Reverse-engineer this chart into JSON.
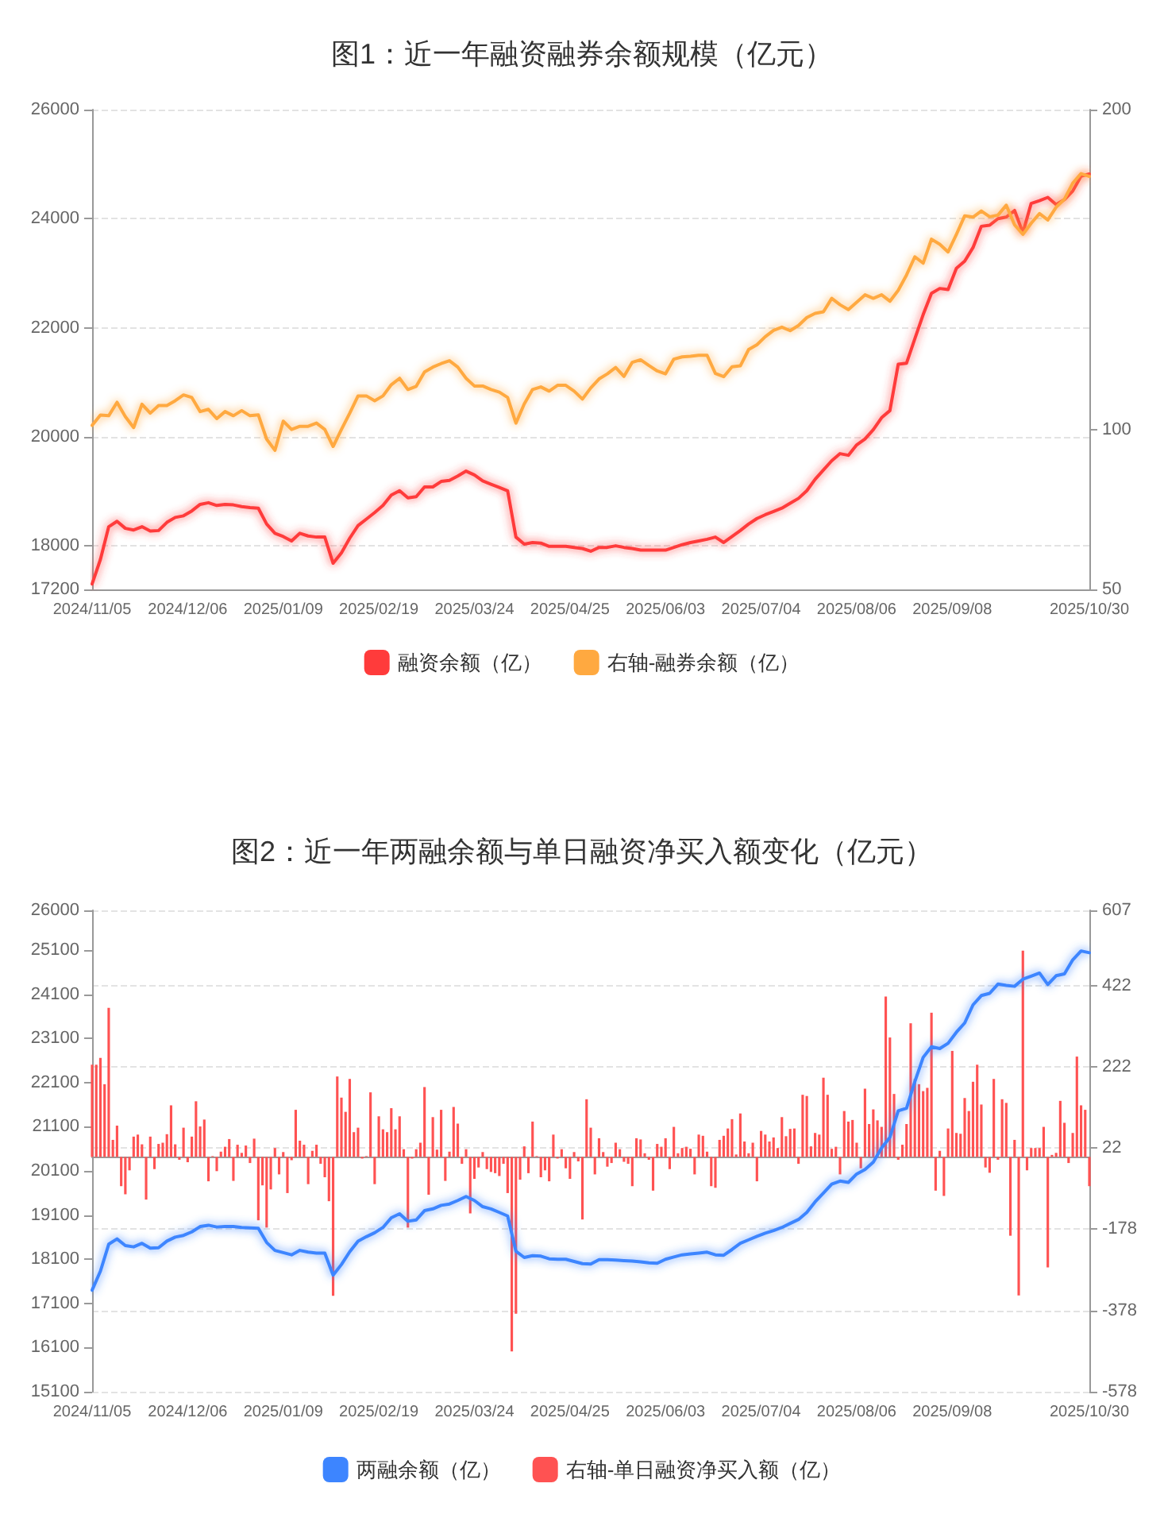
{
  "chart_data": [
    {
      "type": "line",
      "title": "图1：近一年融资融券余额规模（亿元）",
      "categories": [
        "2024/11/05",
        null,
        null,
        null,
        null,
        null,
        null,
        null,
        null,
        null,
        null,
        null,
        null,
        null,
        null,
        null,
        null,
        null,
        null,
        null,
        null,
        null,
        null,
        "2024/12/06",
        null,
        null,
        null,
        null,
        null,
        null,
        null,
        null,
        null,
        null,
        null,
        null,
        null,
        null,
        null,
        null,
        null,
        null,
        null,
        null,
        null,
        null,
        "2025/01/09",
        null,
        null,
        null,
        null,
        null,
        null,
        null,
        null,
        null,
        null,
        null,
        null,
        null,
        null,
        null,
        null,
        null,
        null,
        null,
        null,
        null,
        null,
        "2025/02/19",
        null,
        null,
        null,
        null,
        null,
        null,
        null,
        null,
        null,
        null,
        null,
        null,
        null,
        null,
        null,
        null,
        null,
        null,
        null,
        null,
        null,
        null,
        "2025/03/24",
        null,
        null,
        null,
        null,
        null,
        null,
        null,
        null,
        null,
        null,
        null,
        null,
        null,
        null,
        null,
        null,
        null,
        null,
        null,
        null,
        null,
        null,
        "2025/04/25",
        null,
        null,
        null,
        null,
        null,
        null,
        null,
        null,
        null,
        null,
        null,
        null,
        null,
        null,
        null,
        null,
        null,
        null,
        null,
        null,
        null,
        null,
        "2025/06/03",
        null,
        null,
        null,
        null,
        null,
        null,
        null,
        null,
        null,
        null,
        null,
        null,
        null,
        null,
        null,
        null,
        null,
        null,
        null,
        null,
        null,
        null,
        "2025/07/04",
        null,
        null,
        null,
        null,
        null,
        null,
        null,
        null,
        null,
        null,
        null,
        null,
        null,
        null,
        null,
        null,
        null,
        null,
        null,
        null,
        null,
        null,
        "2025/08/06",
        null,
        null,
        null,
        null,
        null,
        null,
        null,
        null,
        null,
        null,
        null,
        null,
        null,
        null,
        null,
        null,
        null,
        null,
        null,
        null,
        null,
        null,
        "2025/09/08",
        null,
        null,
        null,
        null,
        null,
        null,
        null,
        null,
        null,
        null,
        null,
        null,
        null,
        null,
        null,
        null,
        null,
        null,
        null,
        null,
        null,
        null,
        null,
        null,
        null,
        null,
        null,
        null,
        null,
        null,
        null,
        null,
        "2025/10/30"
      ],
      "ylim": [
        17200,
        26000
      ],
      "yticks": [
        17200,
        18000,
        20000,
        22000,
        24000,
        26000
      ],
      "y2lim": [
        50,
        200
      ],
      "y2ticks": [
        50,
        100,
        200
      ],
      "grid": "y",
      "legend": "bottom",
      "marker": "none",
      "series": [
        {
          "name": "融资余额（亿）",
          "color": "#ff3b3b",
          "values": [
            17300,
            null,
            17750,
            null,
            18350,
            null,
            18450,
            null,
            18320,
            null,
            18290,
            null,
            18350,
            null,
            18270,
            null,
            18280,
            null,
            18430,
            null,
            18520,
            null,
            18550,
            null,
            18640,
            null,
            18760,
            null,
            18790,
            null,
            18740,
            null,
            18760,
            null,
            18750,
            null,
            18720,
            null,
            18700,
            null,
            18690,
            null,
            18400,
            null,
            18230,
            null,
            18170,
            null,
            18090,
            null,
            18230,
            null,
            18180,
            null,
            18160,
            null,
            18160,
            null,
            17680,
            null,
            17870,
            null,
            18140,
            null,
            18370,
            null,
            18490,
            null,
            18610,
            null,
            18740,
            null,
            18930,
            null,
            19010,
            null,
            18880,
            null,
            18900,
            null,
            19080,
            null,
            19080,
            null,
            19180,
            null,
            19200,
            null,
            19280,
            null,
            19370,
            null,
            19300,
            null,
            19190,
            null,
            19130,
            null,
            19070,
            null,
            19010,
            null,
            18160,
            null,
            18030,
            null,
            18060,
            null,
            18050,
            null,
            17990,
            null,
            17990,
            null,
            17990,
            null,
            17970,
            null,
            17950,
            null,
            17900,
            null,
            17970,
            null,
            17970,
            null,
            18000,
            null,
            17970,
            null,
            17950,
            null,
            17920,
            null,
            17920,
            null,
            17920,
            null,
            17920,
            null,
            17970,
            null,
            18020,
            null,
            18060,
            null,
            18090,
            null,
            18120,
            null,
            18160,
            null,
            18060,
            null,
            18170,
            null,
            18280,
            null,
            18400,
            null,
            18500,
            null,
            18570,
            null,
            18630,
            null,
            18690,
            null,
            18780,
            null,
            18870,
            null,
            19010,
            null,
            19220,
            null,
            19390,
            null,
            19560,
            null,
            19690,
            null,
            19660,
            null,
            19850,
            null,
            19960,
            null,
            20130,
            null,
            20350,
            null,
            20480,
            null,
            21330,
            null,
            21350,
            null,
            21800,
            null,
            22240,
            null,
            22630,
            null,
            22720,
            null,
            22700,
            null,
            23090,
            null,
            23220,
            null,
            23470,
            null,
            23860,
            null,
            23880,
            null,
            24000,
            null,
            24030,
            null,
            24150,
            null,
            23740,
            null,
            24280,
            null,
            24330,
            null,
            24390,
            null,
            24260,
            null,
            24350,
            null,
            24510,
            null,
            24780,
            null,
            24820
          ]
        },
        {
          "name": "右轴-融券余额（亿）",
          "color": "#ffa940",
          "axis": "y2",
          "values": [
            101.3,
            null,
            104.5,
            null,
            104.3,
            null,
            108.5,
            null,
            104,
            null,
            100.6,
            null,
            107.9,
            null,
            105.1,
            null,
            107.5,
            null,
            107.5,
            null,
            109,
            null,
            110.8,
            null,
            110,
            null,
            105.6,
            null,
            106.3,
            null,
            103.4,
            null,
            105.6,
            null,
            104.3,
            null,
            105.9,
            null,
            104.3,
            null,
            104.6,
            null,
            97,
            null,
            93.5,
            null,
            102.6,
            null,
            100,
            null,
            101,
            null,
            101,
            null,
            102,
            null,
            100,
            null,
            94.7,
            null,
            100,
            null,
            105.1,
            null,
            110.5,
            null,
            110.5,
            null,
            109,
            null,
            110.5,
            null,
            114,
            null,
            116,
            null,
            112.5,
            null,
            113.5,
            null,
            118,
            null,
            119.5,
            null,
            120.6,
            null,
            121.5,
            null,
            119.5,
            null,
            116,
            null,
            113.6,
            null,
            113.6,
            null,
            112.5,
            null,
            111.7,
            null,
            110,
            null,
            102,
            null,
            108,
            null,
            112.5,
            null,
            113.3,
            null,
            112,
            null,
            113.8,
            null,
            113.8,
            null,
            112,
            null,
            109.5,
            null,
            113,
            null,
            115.8,
            null,
            117.4,
            null,
            119.4,
            null,
            116.6,
            null,
            121,
            null,
            121.8,
            null,
            120,
            null,
            118.3,
            null,
            117.4,
            null,
            122,
            null,
            122.7,
            null,
            122.9,
            null,
            123.2,
            null,
            123.2,
            null,
            117.5,
            null,
            116.5,
            null,
            119.6,
            null,
            119.9,
            null,
            125,
            null,
            126.5,
            null,
            129,
            null,
            131,
            null,
            132,
            null,
            130.9,
            null,
            132.5,
            null,
            135,
            null,
            136.3,
            null,
            136.8,
            null,
            141,
            null,
            139,
            null,
            137.5,
            null,
            139.8,
            null,
            142.1,
            null,
            141,
            null,
            142.1,
            null,
            140.1,
            null,
            143.5,
            null,
            148.3,
            null,
            154,
            null,
            152,
            null,
            159.5,
            null,
            157.9,
            null,
            155.5,
            null,
            161,
            null,
            166.8,
            null,
            166.4,
            null,
            168.3,
            null,
            166.5,
            null,
            167,
            null,
            170.1,
            null,
            164,
            null,
            161,
            null,
            164.5,
            null,
            167.5,
            null,
            165.5,
            null,
            169.5,
            null,
            172,
            null,
            177,
            null,
            180,
            null,
            179.1
          ]
        }
      ]
    },
    {
      "type": "line",
      "title": "图2：近一年两融余额与单日融资净买入额变化（亿元）",
      "categories": [
        "2024/11/05",
        null,
        null,
        null,
        null,
        null,
        null,
        null,
        null,
        null,
        null,
        null,
        null,
        null,
        null,
        null,
        null,
        null,
        null,
        null,
        null,
        null,
        null,
        "2024/12/06",
        null,
        null,
        null,
        null,
        null,
        null,
        null,
        null,
        null,
        null,
        null,
        null,
        null,
        null,
        null,
        null,
        null,
        null,
        null,
        null,
        null,
        null,
        "2025/01/09",
        null,
        null,
        null,
        null,
        null,
        null,
        null,
        null,
        null,
        null,
        null,
        null,
        null,
        null,
        null,
        null,
        null,
        null,
        null,
        null,
        null,
        null,
        "2025/02/19",
        null,
        null,
        null,
        null,
        null,
        null,
        null,
        null,
        null,
        null,
        null,
        null,
        null,
        null,
        null,
        null,
        null,
        null,
        null,
        null,
        null,
        null,
        "2025/03/24",
        null,
        null,
        null,
        null,
        null,
        null,
        null,
        null,
        null,
        null,
        null,
        null,
        null,
        null,
        null,
        null,
        null,
        null,
        null,
        null,
        null,
        null,
        "2025/04/25",
        null,
        null,
        null,
        null,
        null,
        null,
        null,
        null,
        null,
        null,
        null,
        null,
        null,
        null,
        null,
        null,
        null,
        null,
        null,
        null,
        null,
        null,
        "2025/06/03",
        null,
        null,
        null,
        null,
        null,
        null,
        null,
        null,
        null,
        null,
        null,
        null,
        null,
        null,
        null,
        null,
        null,
        null,
        null,
        null,
        null,
        null,
        "2025/07/04",
        null,
        null,
        null,
        null,
        null,
        null,
        null,
        null,
        null,
        null,
        null,
        null,
        null,
        null,
        null,
        null,
        null,
        null,
        null,
        null,
        null,
        null,
        "2025/08/06",
        null,
        null,
        null,
        null,
        null,
        null,
        null,
        null,
        null,
        null,
        null,
        null,
        null,
        null,
        null,
        null,
        null,
        null,
        null,
        null,
        null,
        null,
        "2025/09/08",
        null,
        null,
        null,
        null,
        null,
        null,
        null,
        null,
        null,
        null,
        null,
        null,
        null,
        null,
        null,
        null,
        null,
        null,
        null,
        null,
        null,
        null,
        null,
        null,
        null,
        null,
        null,
        null,
        null,
        null,
        null,
        null,
        "2025/10/30"
      ],
      "ylim": [
        15100,
        26000
      ],
      "yticks": [
        15100,
        16100,
        17100,
        18100,
        19100,
        20100,
        21100,
        22100,
        23100,
        24100,
        25100,
        26000
      ],
      "y2lim": [
        -578,
        607
      ],
      "y2ticks": [
        -578,
        -378,
        -178,
        22,
        222,
        422,
        607
      ],
      "grid": "y",
      "legend": "bottom",
      "marker": "none",
      "series": [
        {
          "name": "两融余额（亿）",
          "color": "#3d85ff",
          "values": [
            17400,
            null,
            17830,
            null,
            18440,
            null,
            18560,
            null,
            18410,
            null,
            18380,
            null,
            18460,
            null,
            18350,
            null,
            18360,
            null,
            18510,
            null,
            18600,
            null,
            18640,
            null,
            18720,
            null,
            18840,
            null,
            18870,
            null,
            18830,
            null,
            18840,
            null,
            18840,
            null,
            18820,
            null,
            18810,
            null,
            18800,
            null,
            18480,
            null,
            18300,
            null,
            18250,
            null,
            18200,
            null,
            18300,
            null,
            18260,
            null,
            18240,
            null,
            18240,
            null,
            17740,
            null,
            17980,
            null,
            18270,
            null,
            18510,
            null,
            18610,
            null,
            18700,
            null,
            18820,
            null,
            19040,
            null,
            19130,
            null,
            18960,
            null,
            18990,
            null,
            19200,
            null,
            19240,
            null,
            19320,
            null,
            19350,
            null,
            19430,
            null,
            19520,
            null,
            19430,
            null,
            19290,
            null,
            19240,
            null,
            19160,
            null,
            19080,
            null,
            18280,
            null,
            18140,
            null,
            18180,
            null,
            18170,
            null,
            18110,
            null,
            18100,
            null,
            18100,
            null,
            18050,
            null,
            18000,
            null,
            17990,
            null,
            18090,
            null,
            18090,
            null,
            18080,
            null,
            18070,
            null,
            18060,
            null,
            18040,
            null,
            18020,
            null,
            18010,
            null,
            18100,
            null,
            18150,
            null,
            18200,
            null,
            18220,
            null,
            18240,
            null,
            18260,
            null,
            18200,
            null,
            18190,
            null,
            18320,
            null,
            18460,
            null,
            18540,
            null,
            18620,
            null,
            18690,
            null,
            18750,
            null,
            18820,
            null,
            18910,
            null,
            19000,
            null,
            19160,
            null,
            19400,
            null,
            19600,
            null,
            19800,
            null,
            19870,
            null,
            19840,
            null,
            20030,
            null,
            20130,
            null,
            20300,
            null,
            20620,
            null,
            20860,
            null,
            21460,
            null,
            21520,
            null,
            22120,
            null,
            22670,
            null,
            22910,
            null,
            22870,
            null,
            22990,
            null,
            23240,
            null,
            23450,
            null,
            23860,
            null,
            24070,
            null,
            24120,
            null,
            24330,
            null,
            24300,
            null,
            24280,
            null,
            24440,
            null,
            24510,
            null,
            24580,
            null,
            24320,
            null,
            24520,
            null,
            24560,
            null,
            24880,
            null,
            25080,
            null,
            25040
          ]
        },
        {
          "name": "右轴-单日融资净买入额（亿）",
          "color": "#ff5252",
          "type": "bar",
          "axis": "y2",
          "values": [
            227,
            227,
            244,
            179,
            367,
            42,
            77,
            -72,
            -92,
            -33,
            50,
            55,
            31,
            -105,
            50,
            -30,
            32,
            35,
            56,
            127,
            31,
            -7,
            72,
            -13,
            50,
            137,
            75,
            92,
            -60,
            2,
            -35,
            13,
            25,
            44,
            -59,
            30,
            10,
            28,
            -15,
            45,
            -156,
            -70,
            -174,
            -80,
            22,
            -43,
            12,
            -89,
            -8,
            116,
            40,
            30,
            -67,
            15,
            30,
            -17,
            -50,
            -109,
            -342,
            198,
            146,
            111,
            192,
            61,
            72,
            -4,
            2,
            159,
            -67,
            100,
            68,
            61,
            120,
            68,
            100,
            19,
            -174,
            -4,
            19,
            35,
            172,
            -93,
            98,
            18,
            116,
            -59,
            13,
            123,
            82,
            -17,
            19,
            -139,
            -54,
            -26,
            12,
            -30,
            -37,
            -40,
            -47,
            -17,
            -89,
            -479,
            -386,
            -56,
            26,
            -40,
            87,
            2,
            -50,
            -33,
            -60,
            55,
            -4,
            19,
            -28,
            -54,
            12,
            -11,
            -154,
            142,
            72,
            -43,
            46,
            12,
            -24,
            -15,
            35,
            19,
            -12,
            -17,
            -72,
            46,
            43,
            9,
            -7,
            -83,
            32,
            25,
            46,
            -30,
            74,
            9,
            22,
            25,
            20,
            -43,
            55,
            52,
            13,
            -72,
            -76,
            42,
            52,
            70,
            93,
            6,
            107,
            38,
            9,
            35,
            -60,
            64,
            55,
            38,
            48,
            22,
            98,
            51,
            69,
            70,
            -17,
            153,
            150,
            26,
            59,
            55,
            195,
            153,
            20,
            25,
            -43,
            113,
            87,
            91,
            35,
            -28,
            168,
            81,
            117,
            90,
            74,
            395,
            294,
            155,
            -7,
            30,
            81,
            329,
            192,
            179,
            162,
            170,
            355,
            -83,
            15,
            -96,
            70,
            261,
            59,
            57,
            145,
            113,
            185,
            227,
            129,
            -26,
            -39,
            192,
            -7,
            142,
            133,
            -194,
            42,
            -341,
            508,
            -33,
            22,
            22,
            22,
            74,
            -272,
            5,
            10,
            138,
            84,
            -15,
            59,
            247,
            127,
            116,
            -72
          ]
        }
      ]
    }
  ]
}
